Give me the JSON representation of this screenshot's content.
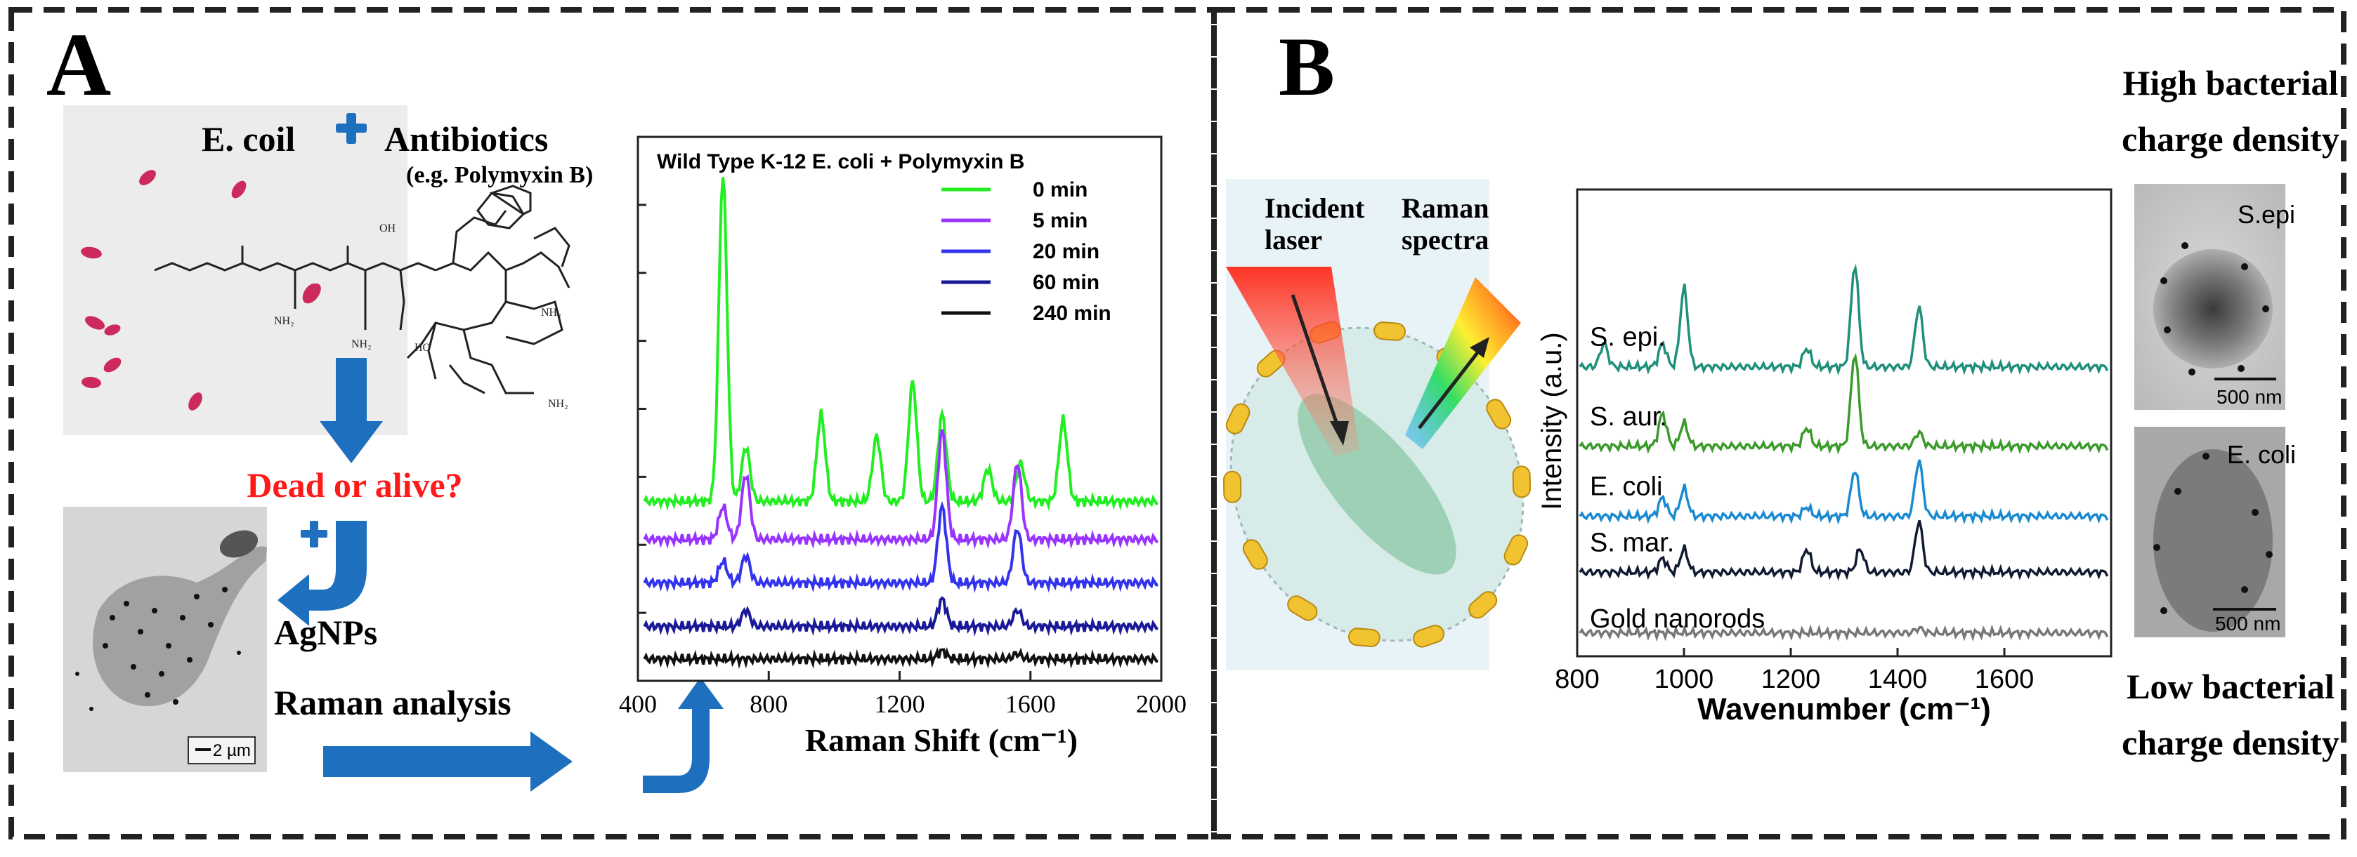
{
  "panel_a": {
    "label": "A",
    "ecoli": "E. coil",
    "antibiotics": "Antibiotics",
    "antibiotics_example": "(e.g. Polymyxin B)",
    "question": "Dead or alive?",
    "agnps": "AgNPs",
    "raman_analysis": "Raman analysis",
    "scale_bar": "2 µm",
    "colors": {
      "question": "#ff1a1a",
      "arrow": "#1f6fbf",
      "cell": "#cc2a5c"
    }
  },
  "panel_b": {
    "label": "B",
    "incident_laser_1": "Incident",
    "incident_laser_2": "laser",
    "raman_spectra_1": "Raman",
    "raman_spectra_2": "spectra",
    "high_density_1": "High bacterial",
    "high_density_2": "charge density",
    "low_density_1": "Low bacterial",
    "low_density_2": "charge density",
    "tem_top_label": "S.epi",
    "tem_top_scale": "500 nm",
    "tem_bottom_label": "E. coli",
    "tem_bottom_scale": "500 nm"
  },
  "chart_data": [
    {
      "type": "line",
      "title": "Wild Type K-12 E. coli + Polymyxin B",
      "xlabel": "Raman Shift (cm-1)",
      "ylabel": "",
      "xlim": [
        400,
        2000
      ],
      "x_ticks": [
        400,
        800,
        1200,
        1600,
        2000
      ],
      "series": [
        {
          "name": "0 min",
          "color": "#22ee22",
          "baseline": 0.33,
          "peaks": [
            [
              660,
              0.6
            ],
            [
              730,
              0.1
            ],
            [
              960,
              0.16
            ],
            [
              1130,
              0.12
            ],
            [
              1240,
              0.22
            ],
            [
              1330,
              0.16
            ],
            [
              1470,
              0.06
            ],
            [
              1570,
              0.07
            ],
            [
              1700,
              0.15
            ]
          ]
        },
        {
          "name": "5 min",
          "color": "#9933ff",
          "baseline": 0.26,
          "peaks": [
            [
              660,
              0.06
            ],
            [
              730,
              0.12
            ],
            [
              1330,
              0.2
            ],
            [
              1560,
              0.14
            ]
          ]
        },
        {
          "name": "20 min",
          "color": "#3333ee",
          "baseline": 0.18,
          "peaks": [
            [
              660,
              0.04
            ],
            [
              730,
              0.05
            ],
            [
              1330,
              0.14
            ],
            [
              1560,
              0.1
            ]
          ]
        },
        {
          "name": "60 min",
          "color": "#1a1a99",
          "baseline": 0.1,
          "peaks": [
            [
              730,
              0.03
            ],
            [
              1330,
              0.05
            ],
            [
              1560,
              0.03
            ]
          ]
        },
        {
          "name": "240 min",
          "color": "#111111",
          "baseline": 0.04,
          "peaks": [
            [
              1330,
              0.015
            ],
            [
              1560,
              0.01
            ]
          ]
        }
      ]
    },
    {
      "type": "line",
      "title": "",
      "xlabel": "Wavenumber (cm-1)",
      "ylabel": "Intensity (a.u.)",
      "xlim": [
        800,
        1800
      ],
      "x_ticks": [
        800,
        1000,
        1200,
        1400,
        1600
      ],
      "series": [
        {
          "name": "S. epi.",
          "color": "#1f8f7a",
          "baseline": 0.62,
          "peaks": [
            [
              1000,
              0.17
            ],
            [
              960,
              0.05
            ],
            [
              850,
              0.05
            ],
            [
              1230,
              0.04
            ],
            [
              1320,
              0.22
            ],
            [
              1440,
              0.13
            ]
          ]
        },
        {
          "name": "S. aur.",
          "color": "#3a9a2a",
          "baseline": 0.45,
          "peaks": [
            [
              1000,
              0.05
            ],
            [
              960,
              0.07
            ],
            [
              1230,
              0.04
            ],
            [
              1320,
              0.2
            ],
            [
              1440,
              0.03
            ]
          ]
        },
        {
          "name": "E. coli",
          "color": "#1a8ad0",
          "baseline": 0.3,
          "peaks": [
            [
              1000,
              0.06
            ],
            [
              960,
              0.04
            ],
            [
              1320,
              0.1
            ],
            [
              1440,
              0.12
            ],
            [
              1230,
              0.02
            ]
          ]
        },
        {
          "name": "S. mar.",
          "color": "#111a33",
          "baseline": 0.18,
          "peaks": [
            [
              1000,
              0.05
            ],
            [
              960,
              0.03
            ],
            [
              1230,
              0.05
            ],
            [
              1330,
              0.05
            ],
            [
              1440,
              0.11
            ]
          ]
        },
        {
          "name": "Gold nanorods",
          "color": "#777777",
          "baseline": 0.05,
          "peaks": [
            [
              1440,
              0.01
            ]
          ]
        }
      ]
    }
  ]
}
